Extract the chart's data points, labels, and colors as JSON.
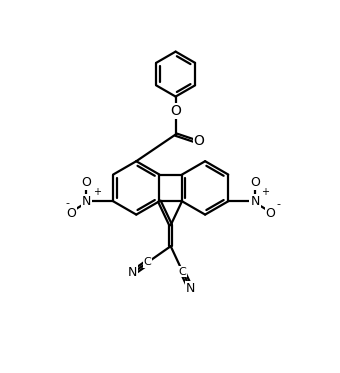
{
  "background": "#ffffff",
  "line_color": "#000000",
  "lw": 1.6,
  "figsize": [
    3.4,
    3.73
  ],
  "dpi": 100,
  "font_size": 9,
  "small_font_size": 7,
  "xlim": [
    -1,
    11
  ],
  "ylim": [
    -0.5,
    11.5
  ]
}
